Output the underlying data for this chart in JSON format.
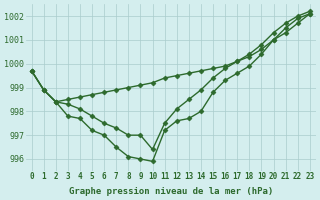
{
  "title": "Graphe pression niveau de la mer (hPa)",
  "bg_color": "#d4eeee",
  "grid_color": "#aacccc",
  "line_color": "#2d6a2d",
  "x_ticks": [
    0,
    1,
    2,
    3,
    4,
    5,
    6,
    7,
    8,
    9,
    10,
    11,
    12,
    13,
    14,
    15,
    16,
    17,
    18,
    19,
    20,
    21,
    22,
    23
  ],
  "ylim": [
    995.5,
    1002.5
  ],
  "yticks": [
    996,
    997,
    998,
    999,
    1000,
    1001,
    1002
  ],
  "series": [
    [
      999.7,
      998.9,
      998.4,
      997.8,
      997.7,
      997.2,
      997.0,
      996.5,
      996.1,
      996.0,
      995.9,
      997.2,
      997.6,
      997.7,
      998.0,
      998.8,
      999.3,
      999.6,
      999.9,
      1000.4,
      1001.0,
      1001.5,
      1001.9,
      1002.1
    ],
    [
      999.7,
      998.9,
      998.4,
      998.3,
      998.1,
      997.8,
      997.5,
      997.3,
      997.0,
      997.0,
      996.4,
      997.5,
      998.1,
      998.5,
      998.9,
      999.4,
      999.8,
      1000.1,
      1000.4,
      1000.8,
      1001.3,
      1001.7,
      1002.0,
      1002.2
    ],
    [
      999.7,
      998.9,
      998.4,
      998.5,
      998.6,
      998.7,
      998.8,
      998.9,
      999.0,
      999.1,
      999.2,
      999.4,
      999.5,
      999.6,
      999.7,
      999.8,
      999.9,
      1000.1,
      1000.3,
      1000.6,
      1001.0,
      1001.3,
      1001.7,
      1002.1
    ]
  ],
  "marker": "D",
  "marker_size": 2.5,
  "linewidth": 1.0
}
